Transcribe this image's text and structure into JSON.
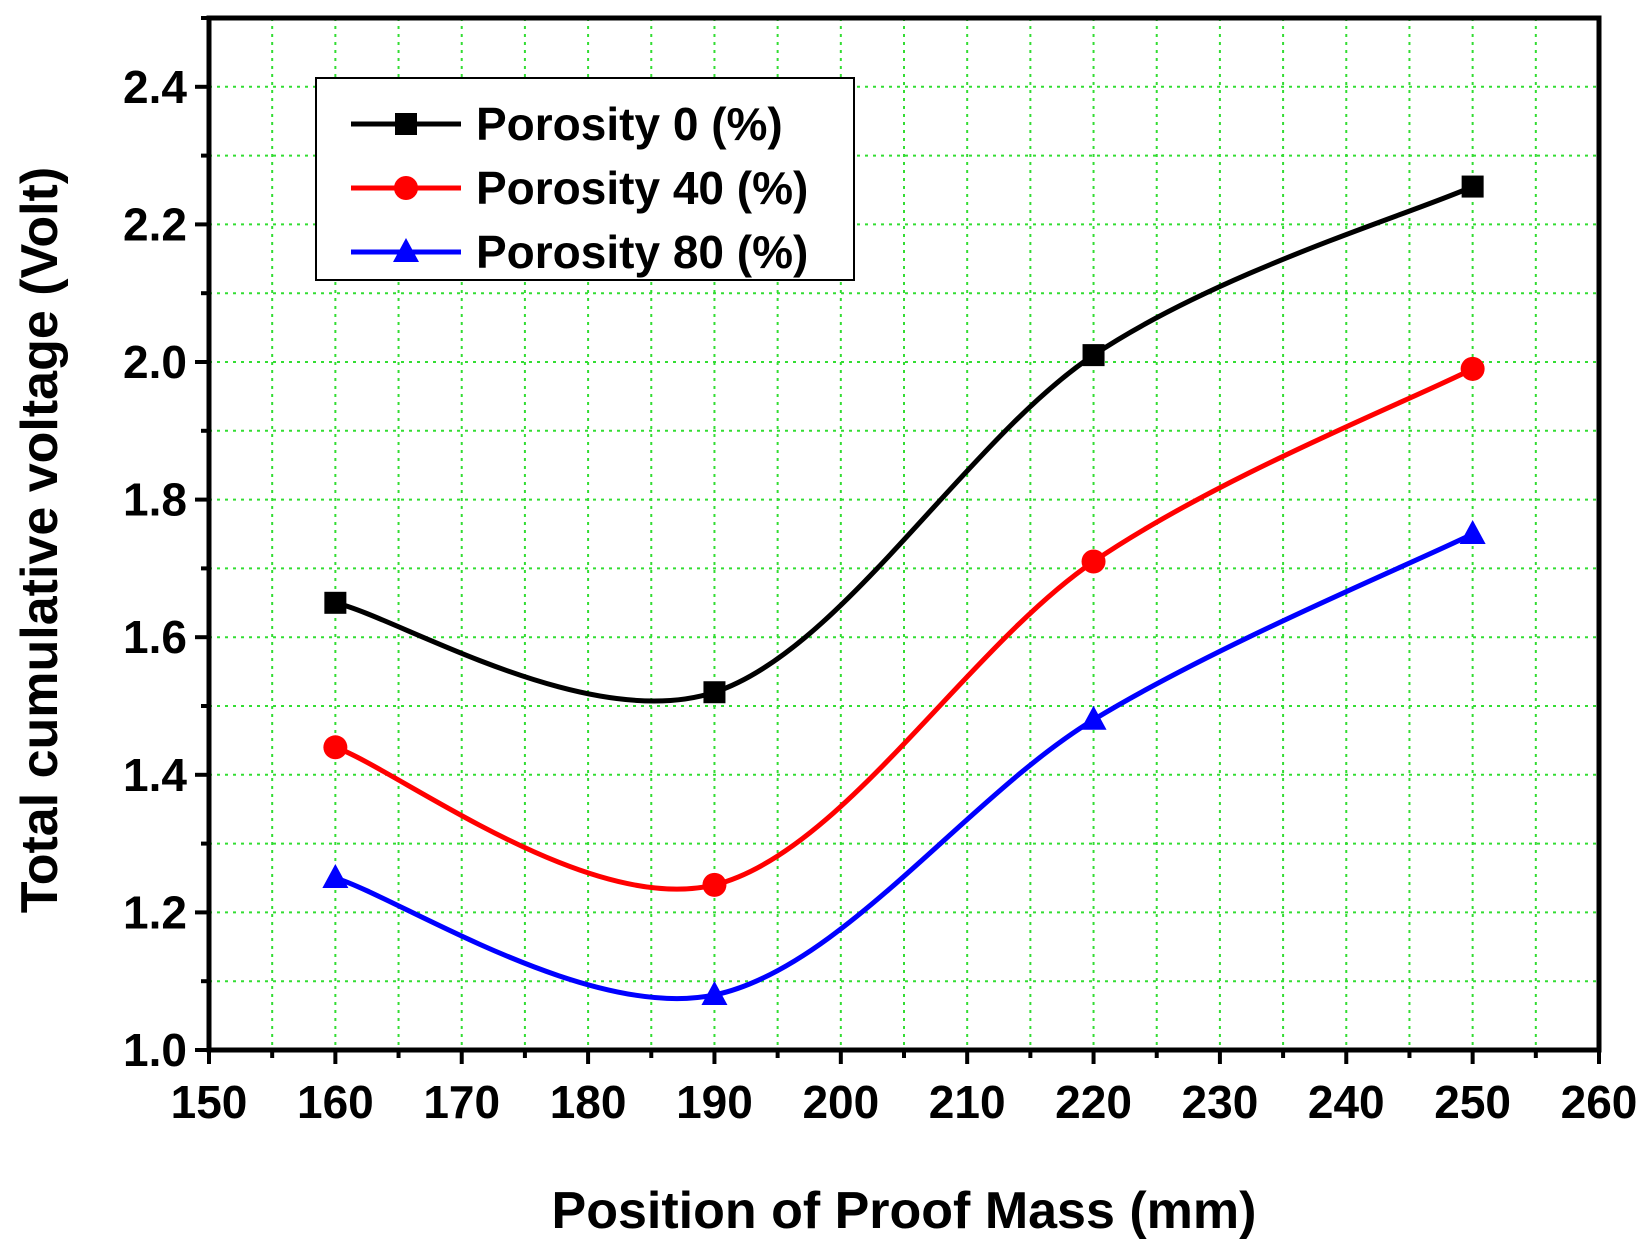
{
  "chart_data": {
    "type": "line",
    "title": "",
    "xlabel": "Position of Proof Mass (mm)",
    "ylabel": "Total cumulative voltage (Volt)",
    "xlim": [
      150,
      260
    ],
    "ylim": [
      1.0,
      2.5
    ],
    "xticks": [
      150,
      160,
      170,
      180,
      190,
      200,
      210,
      220,
      230,
      240,
      250,
      260
    ],
    "xtick_labels": [
      "150",
      "160",
      "170",
      "180",
      "190",
      "200",
      "210",
      "220",
      "230",
      "240",
      "250",
      "260"
    ],
    "yticks": [
      1.0,
      1.2,
      1.4,
      1.6,
      1.8,
      2.0,
      2.2,
      2.4
    ],
    "ytick_labels": [
      "1.0",
      "1.2",
      "1.4",
      "1.6",
      "1.8",
      "2.0",
      "2.2",
      "2.4"
    ],
    "grid": true,
    "legend_position": "top-left",
    "x": [
      160,
      190,
      220,
      250
    ],
    "series": [
      {
        "name": "Porosity 0 (%)",
        "values": [
          1.65,
          1.52,
          2.01,
          2.255
        ],
        "color": "#000000",
        "marker": "square"
      },
      {
        "name": "Porosity 40 (%)",
        "values": [
          1.44,
          1.24,
          1.71,
          1.99
        ],
        "color": "#ff0000",
        "marker": "circle"
      },
      {
        "name": "Porosity 80 (%)",
        "values": [
          1.25,
          1.08,
          1.48,
          1.75
        ],
        "color": "#0000ff",
        "marker": "triangle"
      }
    ]
  }
}
